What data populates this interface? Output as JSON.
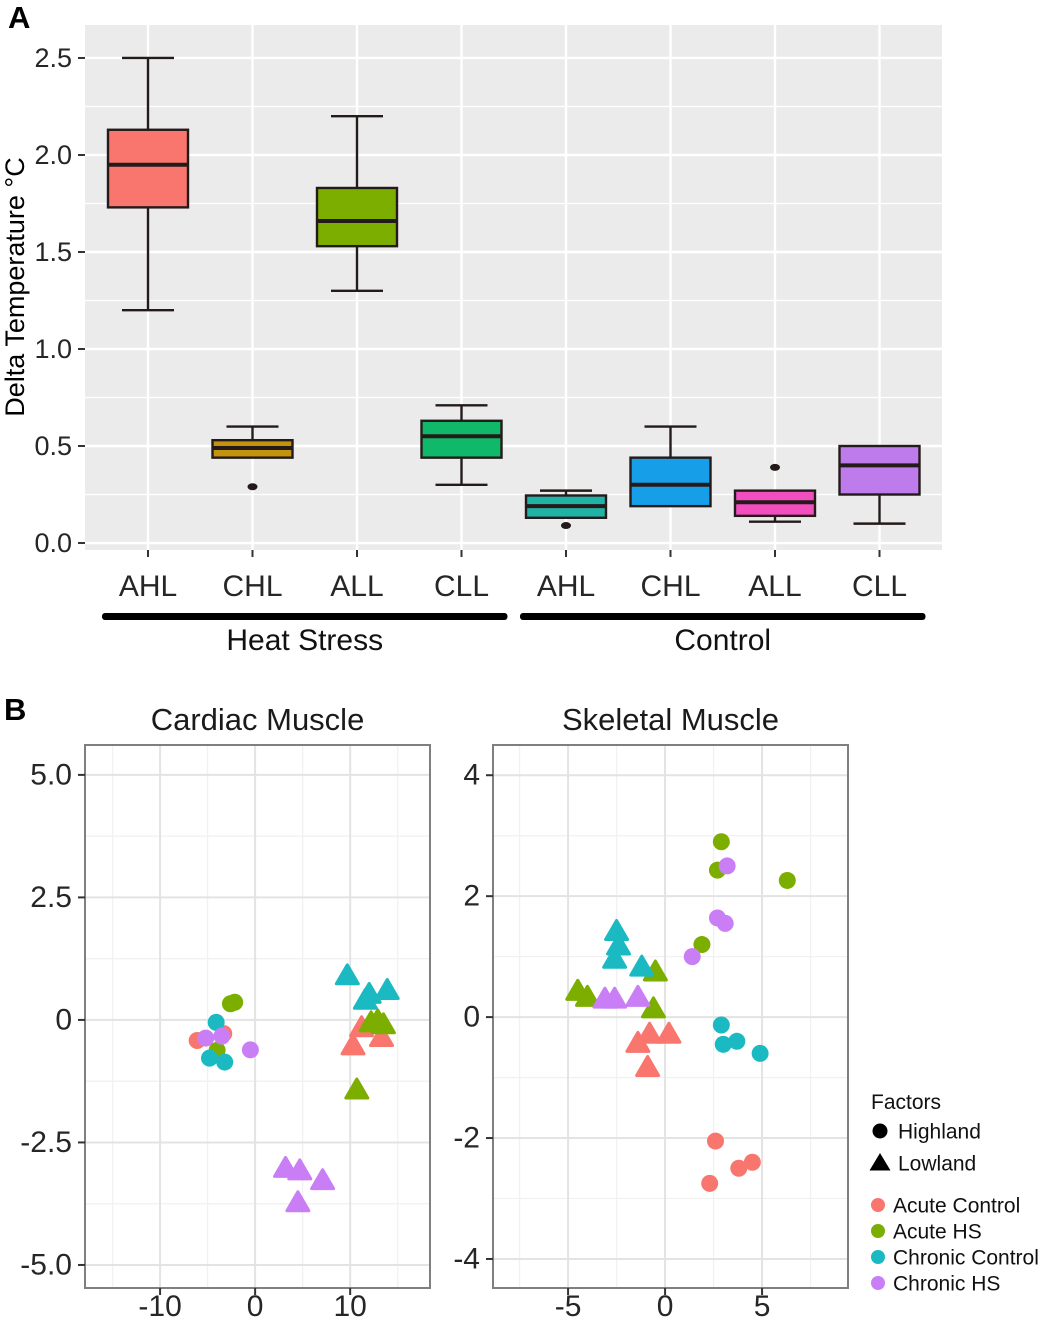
{
  "panels": {
    "a_label": "A",
    "b_label": "B"
  },
  "styles": {
    "boxplot_panel_bg": "#EBEBEB",
    "grid_white": "#FFFFFF",
    "scatter_major_grid": "#E3E3E3",
    "scatter_minor_grid": "#F1F1F1",
    "scatter_border": "#7F7F7F",
    "axis_text": "#262626",
    "box_stroke": "#241A1A",
    "legend_text": "#111111"
  },
  "chart_data": [
    {
      "type": "boxplot",
      "name": "delta-temperature-boxplot",
      "title": "",
      "xlabel": "",
      "ylabel": "Delta Temperature °C",
      "ylim": [
        -0.036,
        2.67
      ],
      "y_major_ticks": [
        0,
        0.5,
        1,
        1.5,
        2,
        2.5
      ],
      "y_tick_labels": [
        "0.0",
        "0.5",
        "1.0",
        "1.5",
        "2.0",
        "2.5"
      ],
      "y_minor_ticks": [
        0.25,
        0.75,
        1.25,
        1.75,
        2.25
      ],
      "grid": true,
      "groups": [
        {
          "label": "Heat Stress",
          "from": 0,
          "to": 3
        },
        {
          "label": "Control",
          "from": 4,
          "to": 7
        }
      ],
      "boxes": [
        {
          "category": "AHL",
          "group": "Heat Stress",
          "color": "#F8766D",
          "whisker_low": 1.2,
          "q1": 1.73,
          "median": 1.95,
          "q3": 2.13,
          "whisker_high": 2.5,
          "outliers": []
        },
        {
          "category": "CHL",
          "group": "Heat Stress",
          "color": "#C3930D",
          "whisker_low": 0.44,
          "q1": 0.44,
          "median": 0.49,
          "q3": 0.53,
          "whisker_high": 0.6,
          "outliers": [
            0.29
          ]
        },
        {
          "category": "ALL",
          "group": "Heat Stress",
          "color": "#7CAE00",
          "whisker_low": 1.3,
          "q1": 1.53,
          "median": 1.66,
          "q3": 1.83,
          "whisker_high": 2.2,
          "outliers": []
        },
        {
          "category": "CLL",
          "group": "Heat Stress",
          "color": "#10B96A",
          "whisker_low": 0.3,
          "q1": 0.44,
          "median": 0.55,
          "q3": 0.63,
          "whisker_high": 0.71,
          "outliers": []
        },
        {
          "category": "AHL",
          "group": "Control",
          "color": "#21B2A6",
          "whisker_low": 0.13,
          "q1": 0.13,
          "median": 0.19,
          "q3": 0.245,
          "whisker_high": 0.27,
          "outliers": [
            0.09
          ]
        },
        {
          "category": "CHL",
          "group": "Control",
          "color": "#169FE8",
          "whisker_low": 0.19,
          "q1": 0.19,
          "median": 0.3,
          "q3": 0.44,
          "whisker_high": 0.6,
          "outliers": []
        },
        {
          "category": "ALL",
          "group": "Control",
          "color": "#F24EBF",
          "whisker_low": 0.11,
          "q1": 0.14,
          "median": 0.21,
          "q3": 0.27,
          "whisker_high": 0.27,
          "outliers": [
            0.39
          ]
        },
        {
          "category": "CLL",
          "group": "Control",
          "color": "#BE7BEC",
          "whisker_low": 0.1,
          "q1": 0.25,
          "median": 0.4,
          "q3": 0.5,
          "whisker_high": 0.5,
          "outliers": []
        }
      ]
    },
    {
      "type": "scatter",
      "name": "cardiac-muscle-scatter",
      "title": "Cardiac Muscle",
      "xlim": [
        -17.9,
        18.4
      ],
      "ylim": [
        -5.47,
        5.61
      ],
      "x_major_ticks": [
        -10,
        0,
        10
      ],
      "x_tick_labels": [
        "-10",
        "0",
        "10"
      ],
      "x_minor_ticks": [
        -15,
        -5,
        5,
        15
      ],
      "y_major_ticks": [
        5,
        2.5,
        0,
        -2.5,
        -5
      ],
      "y_tick_labels": [
        "5.0",
        "2.5",
        "0",
        "-2.5",
        "-5.0"
      ],
      "y_minor_ticks": [
        3.75,
        1.25,
        -1.25,
        -3.75
      ],
      "grid": true,
      "series": [
        {
          "name": "Acute Control",
          "factor": "Highland",
          "marker": "circle",
          "color": "#F8766D",
          "points": [
            [
              -6.1,
              -0.42
            ],
            [
              -3.3,
              -0.28
            ]
          ]
        },
        {
          "name": "Acute HS",
          "factor": "Highland",
          "marker": "circle",
          "color": "#7CAE00",
          "points": [
            [
              -2.6,
              0.33
            ],
            [
              -2.15,
              0.36
            ],
            [
              -4.0,
              -0.62
            ]
          ]
        },
        {
          "name": "Chronic Control",
          "factor": "Highland",
          "marker": "circle",
          "color": "#1BB9C2",
          "points": [
            [
              -4.1,
              -0.05
            ],
            [
              -4.8,
              -0.78
            ],
            [
              -3.2,
              -0.86
            ]
          ]
        },
        {
          "name": "Chronic HS",
          "factor": "Highland",
          "marker": "circle",
          "color": "#C97EF5",
          "points": [
            [
              -5.2,
              -0.37
            ],
            [
              -3.5,
              -0.33
            ],
            [
              -0.5,
              -0.61
            ]
          ]
        },
        {
          "name": "Acute Control",
          "factor": "Lowland",
          "marker": "triangle",
          "color": "#F8766D",
          "points": [
            [
              11.2,
              -0.18
            ],
            [
              13.3,
              -0.38
            ],
            [
              10.3,
              -0.55
            ]
          ]
        },
        {
          "name": "Acute HS",
          "factor": "Lowland",
          "marker": "triangle",
          "color": "#7CAE00",
          "points": [
            [
              12.2,
              -0.08
            ],
            [
              12.9,
              -0.04
            ],
            [
              13.5,
              -0.12
            ],
            [
              10.7,
              -1.45
            ]
          ]
        },
        {
          "name": "Chronic Control",
          "factor": "Lowland",
          "marker": "triangle",
          "color": "#1BB9C2",
          "points": [
            [
              9.7,
              0.88
            ],
            [
              11.6,
              0.38
            ],
            [
              12.0,
              0.5
            ],
            [
              13.9,
              0.58
            ]
          ]
        },
        {
          "name": "Chronic HS",
          "factor": "Lowland",
          "marker": "triangle",
          "color": "#C97EF5",
          "points": [
            [
              3.2,
              -3.05
            ],
            [
              4.7,
              -3.1
            ],
            [
              7.1,
              -3.3
            ],
            [
              4.5,
              -3.75
            ]
          ]
        }
      ]
    },
    {
      "type": "scatter",
      "name": "skeletal-muscle-scatter",
      "title": "Skeletal Muscle",
      "xlim": [
        -8.87,
        9.43
      ],
      "ylim": [
        -4.48,
        4.5
      ],
      "x_major_ticks": [
        -5,
        0,
        5
      ],
      "x_tick_labels": [
        "-5",
        "0",
        "5"
      ],
      "x_minor_ticks": [
        -7.5,
        -2.5,
        2.5,
        7.5
      ],
      "y_major_ticks": [
        4,
        2,
        0,
        -2,
        -4
      ],
      "y_tick_labels": [
        "4",
        "2",
        "0",
        "-2",
        "-4"
      ],
      "y_minor_ticks": [
        3,
        1,
        -1,
        -3
      ],
      "grid": true,
      "series": [
        {
          "name": "Acute Control",
          "factor": "Highland",
          "marker": "circle",
          "color": "#F8766D",
          "points": [
            [
              2.6,
              -2.05
            ],
            [
              3.8,
              -2.5
            ],
            [
              4.5,
              -2.4
            ],
            [
              2.3,
              -2.75
            ]
          ]
        },
        {
          "name": "Acute HS",
          "factor": "Highland",
          "marker": "circle",
          "color": "#7CAE00",
          "points": [
            [
              2.9,
              2.9
            ],
            [
              2.7,
              2.43
            ],
            [
              6.3,
              2.26
            ],
            [
              1.9,
              1.2
            ]
          ]
        },
        {
          "name": "Chronic Control",
          "factor": "Highland",
          "marker": "circle",
          "color": "#1BB9C2",
          "points": [
            [
              2.9,
              -0.13
            ],
            [
              3.0,
              -0.45
            ],
            [
              3.7,
              -0.4
            ],
            [
              4.9,
              -0.6
            ]
          ]
        },
        {
          "name": "Chronic HS",
          "factor": "Highland",
          "marker": "circle",
          "color": "#C97EF5",
          "points": [
            [
              3.2,
              2.5
            ],
            [
              2.7,
              1.64
            ],
            [
              3.1,
              1.55
            ],
            [
              1.4,
              1.0
            ]
          ]
        },
        {
          "name": "Acute Control",
          "factor": "Lowland",
          "marker": "triangle",
          "color": "#F8766D",
          "points": [
            [
              -1.4,
              -0.45
            ],
            [
              -0.8,
              -0.3
            ],
            [
              0.2,
              -0.3
            ],
            [
              -0.9,
              -0.85
            ]
          ]
        },
        {
          "name": "Acute HS",
          "factor": "Lowland",
          "marker": "triangle",
          "color": "#7CAE00",
          "points": [
            [
              -4.5,
              0.41
            ],
            [
              -4.0,
              0.31
            ],
            [
              -0.5,
              0.73
            ],
            [
              -0.6,
              0.12
            ]
          ]
        },
        {
          "name": "Chronic Control",
          "factor": "Lowland",
          "marker": "triangle",
          "color": "#1BB9C2",
          "points": [
            [
              -2.5,
              1.4
            ],
            [
              -2.4,
              1.16
            ],
            [
              -2.6,
              0.94
            ],
            [
              -1.2,
              0.81
            ]
          ]
        },
        {
          "name": "Chronic HS",
          "factor": "Lowland",
          "marker": "triangle",
          "color": "#C97EF5",
          "points": [
            [
              -3.1,
              0.28
            ],
            [
              -2.6,
              0.28
            ],
            [
              -1.4,
              0.31
            ]
          ]
        }
      ]
    }
  ],
  "legend": {
    "title": "Factors",
    "shape_items": [
      {
        "label": "Highland",
        "marker": "circle"
      },
      {
        "label": "Lowland",
        "marker": "triangle"
      }
    ],
    "color_items": [
      {
        "label": "Acute Control",
        "color": "#F8766D"
      },
      {
        "label": "Acute HS",
        "color": "#7CAE00"
      },
      {
        "label": "Chronic Control",
        "color": "#1BB9C2"
      },
      {
        "label": "Chronic HS",
        "color": "#C97EF5"
      }
    ]
  }
}
